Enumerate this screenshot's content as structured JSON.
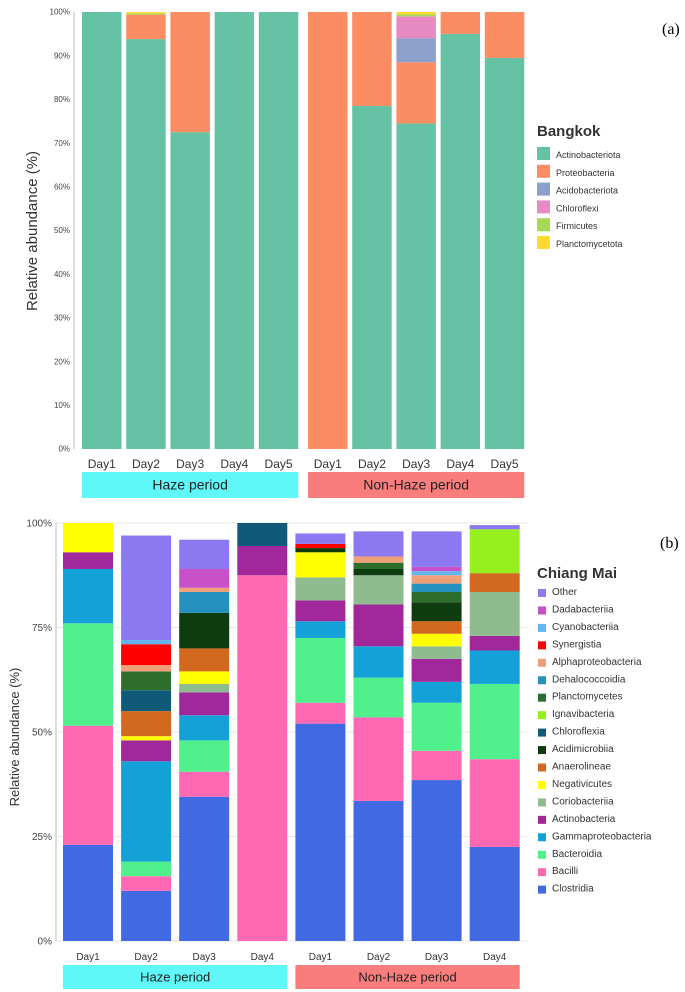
{
  "chart_data": [
    {
      "panel": "(a)",
      "type": "bar",
      "stacked": true,
      "title": "Bangkok",
      "ylabel": "Relative abundance (%)",
      "ylim": [
        0,
        100
      ],
      "yticks": [
        "0%",
        "10%",
        "20%",
        "30%",
        "40%",
        "50%",
        "60%",
        "70%",
        "80%",
        "90%",
        "100%"
      ],
      "groups": [
        {
          "label": "Haze period",
          "color": "#5ff7f7",
          "categories": [
            "Day1",
            "Day2",
            "Day3",
            "Day4",
            "Day5"
          ]
        },
        {
          "label": "Non-Haze period",
          "color": "#fa7d7d",
          "categories": [
            "Day1",
            "Day2",
            "Day3",
            "Day4",
            "Day5"
          ]
        }
      ],
      "series": [
        {
          "name": "Actinobacteriota",
          "color": "#66c2a5",
          "values": [
            100,
            93.8,
            72.5,
            100,
            100,
            0,
            78.5,
            74.5,
            95,
            89.5
          ]
        },
        {
          "name": "Proteobacteria",
          "color": "#fc8d62",
          "values": [
            0,
            5.6,
            27.5,
            0,
            0,
            100,
            21.5,
            14,
            5,
            10.5
          ]
        },
        {
          "name": "Acidobacteriota",
          "color": "#8da0cb",
          "values": [
            0,
            0,
            0,
            0,
            0,
            0,
            0,
            5.5,
            0,
            0
          ]
        },
        {
          "name": "Chloroflexi",
          "color": "#e78ac3",
          "values": [
            0,
            0,
            0,
            0,
            0,
            0,
            0,
            5,
            0,
            0
          ]
        },
        {
          "name": "Firmicutes",
          "color": "#a6d854",
          "values": [
            0,
            0.3,
            0,
            0,
            0,
            0,
            0,
            0.5,
            0,
            0
          ]
        },
        {
          "name": "Planctomycetota",
          "color": "#ffd92f",
          "values": [
            0,
            0.3,
            0,
            0,
            0,
            0,
            0,
            0.5,
            0,
            0
          ]
        }
      ],
      "legend": "right"
    },
    {
      "panel": "(b)",
      "type": "bar",
      "stacked": true,
      "title": "Chiang Mai",
      "ylabel": "Relative abundance (%)",
      "ylim": [
        0,
        100
      ],
      "yticks": [
        "0%",
        "25%",
        "50%",
        "75%",
        "100%"
      ],
      "groups": [
        {
          "label": "Haze period",
          "color": "#5ff7f7",
          "categories": [
            "Day1",
            "Day2",
            "Day3",
            "Day4"
          ]
        },
        {
          "label": "Non-Haze period",
          "color": "#fa7d7d",
          "categories": [
            "Day1",
            "Day2",
            "Day3",
            "Day4"
          ]
        }
      ],
      "series": [
        {
          "name": "Clostridia",
          "color": "#4169e1",
          "values": [
            23,
            12,
            34.5,
            0,
            52,
            33.5,
            38.5,
            22.5
          ]
        },
        {
          "name": "Bacilli",
          "color": "#ff69b4",
          "values": [
            28.5,
            3.5,
            6,
            87.5,
            5,
            20,
            7,
            21
          ]
        },
        {
          "name": "Bacteroidia",
          "color": "#50f08c",
          "values": [
            24.5,
            3.5,
            7.5,
            0,
            15.5,
            9.5,
            11.5,
            18
          ]
        },
        {
          "name": "Gammaproteobacteria",
          "color": "#13a1d8",
          "values": [
            13,
            24,
            6,
            0,
            4,
            7.5,
            5,
            8
          ]
        },
        {
          "name": "Actinobacteria",
          "color": "#a0289b",
          "values": [
            4,
            5,
            5.5,
            7,
            5,
            10,
            5.5,
            3.5
          ]
        },
        {
          "name": "Coriobacteriia",
          "color": "#8fbc8f",
          "values": [
            0,
            0,
            2,
            0,
            5.5,
            7,
            3,
            10.5
          ]
        },
        {
          "name": "Negativicutes",
          "color": "#ffff00",
          "values": [
            7,
            1,
            3,
            0,
            6,
            0,
            3,
            0
          ]
        },
        {
          "name": "Anaerolineae",
          "color": "#d2691e",
          "values": [
            0,
            6,
            5.5,
            0,
            0,
            0,
            3,
            4.5
          ]
        },
        {
          "name": "Acidimicrobiia",
          "color": "#0f3c0f",
          "values": [
            0,
            0,
            8.5,
            0,
            1,
            1.5,
            4.5,
            0
          ]
        },
        {
          "name": "Chloroflexia",
          "color": "#0f5a78",
          "values": [
            0,
            5,
            0,
            5.5,
            0,
            0,
            0,
            0
          ]
        },
        {
          "name": "Ignavibacteria",
          "color": "#96f01e",
          "values": [
            0,
            0,
            0,
            0,
            0,
            0,
            0,
            10.5
          ]
        },
        {
          "name": "Planctomycetes",
          "color": "#2d6e2d",
          "values": [
            0,
            4.5,
            0,
            0,
            0,
            1.5,
            2.5,
            0
          ]
        },
        {
          "name": "Dehalococcoidia",
          "color": "#2491be",
          "values": [
            0,
            0,
            5,
            0,
            0,
            0,
            2,
            0
          ]
        },
        {
          "name": "Alphaproteobacteria",
          "color": "#f0a078",
          "values": [
            0,
            1.5,
            1,
            0,
            0,
            1.5,
            2,
            0
          ]
        },
        {
          "name": "Synergistia",
          "color": "#ff0000",
          "values": [
            0,
            5,
            0,
            0,
            1,
            0,
            0,
            0
          ]
        },
        {
          "name": "Cyanobacteriia",
          "color": "#64b4f0",
          "values": [
            0,
            1,
            0,
            0,
            0,
            0,
            1,
            0
          ]
        },
        {
          "name": "Dadabacteriia",
          "color": "#c850c8",
          "values": [
            0,
            0,
            4.5,
            0,
            0,
            0,
            1,
            0
          ]
        },
        {
          "name": "Other",
          "color": "#8c78f0",
          "values": [
            0,
            25,
            7,
            0,
            2.5,
            6,
            8.5,
            1
          ]
        }
      ],
      "legend": "right"
    }
  ]
}
